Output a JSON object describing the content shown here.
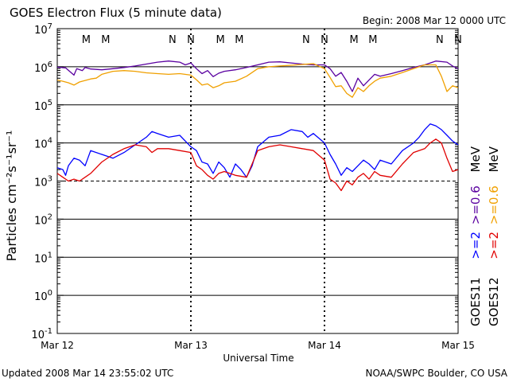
{
  "chart_data": {
    "type": "line",
    "title": "GOES Electron Flux (5 minute data)",
    "begin_label": "Begin: 2008 Mar 12 0000 UTC",
    "xlabel": "Universal Time",
    "ylabel": "Particles cm⁻²s⁻¹sr⁻¹",
    "footer_left": "Updated 2008 Mar 14 23:55:02 UTC",
    "footer_right": "NOAA/SWPC Boulder, CO USA",
    "y_scale": "log",
    "ylim_exponent": [
      -1,
      7
    ],
    "y_ticks": [
      {
        "base": "10",
        "exp": "7"
      },
      {
        "base": "10",
        "exp": "6"
      },
      {
        "base": "10",
        "exp": "5"
      },
      {
        "base": "10",
        "exp": "4"
      },
      {
        "base": "10",
        "exp": "3"
      },
      {
        "base": "10",
        "exp": "2"
      },
      {
        "base": "10",
        "exp": "1"
      },
      {
        "base": "10",
        "exp": "0"
      },
      {
        "base": "10",
        "exp": "-1"
      }
    ],
    "x_range_hours": [
      0,
      72
    ],
    "x_ticks": [
      "Mar 12",
      "Mar 13",
      "Mar 14",
      "Mar 15"
    ],
    "day_boundaries_hours": [
      24,
      48
    ],
    "threshold_exponent": 3,
    "mn_markers": [
      {
        "label": "M",
        "hour": 5.2,
        "color": "#0000ff"
      },
      {
        "label": "M",
        "hour": 8.7,
        "color": "#e00000"
      },
      {
        "label": "N",
        "hour": 20.7,
        "color": "#0000ff"
      },
      {
        "label": "N",
        "hour": 24.0,
        "color": "#e00000"
      },
      {
        "label": "M",
        "hour": 29.3,
        "color": "#0000ff"
      },
      {
        "label": "M",
        "hour": 32.7,
        "color": "#e00000"
      },
      {
        "label": "N",
        "hour": 44.7,
        "color": "#0000ff"
      },
      {
        "label": "N",
        "hour": 48.0,
        "color": "#e00000"
      },
      {
        "label": "M",
        "hour": 53.3,
        "color": "#0000ff"
      },
      {
        "label": "M",
        "hour": 56.7,
        "color": "#e00000"
      },
      {
        "label": "N",
        "hour": 68.7,
        "color": "#0000ff"
      },
      {
        "label": "N",
        "hour": 72.0,
        "color": "#e00000"
      }
    ],
    "legend": {
      "placement": "right",
      "goes11": "GOES11",
      "goes12": "GOES12",
      "g11_gt2": ">=2",
      "g11_gt06": ">=0.6",
      "g12_gt2": ">=2",
      "g12_gt06": ">=0.6",
      "unit": "MeV"
    },
    "series": [
      {
        "color": "#5a00a0",
        "x": [
          0,
          1.5,
          3,
          3.5,
          4.5,
          5,
          6,
          8,
          10,
          12,
          14,
          16,
          18,
          20,
          22,
          23,
          24,
          25,
          26,
          27,
          28,
          29,
          30,
          32,
          34,
          36,
          38,
          40,
          42,
          44,
          46,
          48,
          49,
          50,
          51,
          52,
          53,
          54,
          55,
          56,
          57,
          58,
          60,
          62,
          64,
          66,
          68,
          70,
          71,
          72
        ],
        "y": [
          5.99,
          5.97,
          5.78,
          5.95,
          5.9,
          5.98,
          5.94,
          5.92,
          5.95,
          5.98,
          6.02,
          6.07,
          6.12,
          6.15,
          6.12,
          6.05,
          6.1,
          5.95,
          5.82,
          5.9,
          5.74,
          5.83,
          5.88,
          5.92,
          5.98,
          6.05,
          6.12,
          6.13,
          6.1,
          6.07,
          6.05,
          6.05,
          5.95,
          5.75,
          5.85,
          5.62,
          5.35,
          5.7,
          5.5,
          5.65,
          5.8,
          5.75,
          5.82,
          5.9,
          5.98,
          6.05,
          6.15,
          6.12,
          6.02,
          5.95
        ]
      },
      {
        "color": "#f0a000",
        "x": [
          0,
          1,
          2,
          3,
          4,
          5,
          6,
          7,
          8,
          10,
          12,
          14,
          16,
          18,
          20,
          22,
          24,
          25,
          26,
          27,
          28,
          29,
          30,
          32,
          34,
          36,
          38,
          40,
          42,
          44,
          46,
          48,
          49,
          50,
          51,
          52,
          53,
          54,
          55,
          56,
          57,
          58,
          60,
          62,
          64,
          66,
          68,
          69,
          70,
          71,
          72
        ],
        "y": [
          5.65,
          5.62,
          5.58,
          5.52,
          5.6,
          5.64,
          5.68,
          5.7,
          5.8,
          5.88,
          5.9,
          5.88,
          5.84,
          5.82,
          5.8,
          5.82,
          5.78,
          5.66,
          5.52,
          5.55,
          5.45,
          5.5,
          5.58,
          5.62,
          5.75,
          5.95,
          6.0,
          6.02,
          6.04,
          6.06,
          6.08,
          5.95,
          5.72,
          5.48,
          5.5,
          5.3,
          5.2,
          5.45,
          5.35,
          5.5,
          5.62,
          5.7,
          5.75,
          5.85,
          5.95,
          6.05,
          6.05,
          5.75,
          5.35,
          5.5,
          5.45
        ]
      },
      {
        "color": "#0000ff",
        "x": [
          0,
          1,
          1.5,
          2,
          3,
          4,
          5,
          6,
          8,
          10,
          12,
          14,
          16,
          17,
          18,
          20,
          22,
          24,
          25,
          26,
          27,
          28,
          29,
          30,
          31,
          32,
          33,
          34,
          35,
          36,
          38,
          40,
          42,
          44,
          45,
          46,
          48,
          49,
          50,
          51,
          52,
          53,
          54,
          55,
          56,
          57,
          58,
          60,
          62,
          64,
          65,
          66,
          67,
          68,
          69,
          70,
          71,
          72
        ],
        "y": [
          3.35,
          3.3,
          3.15,
          3.4,
          3.6,
          3.55,
          3.4,
          3.8,
          3.7,
          3.6,
          3.75,
          3.95,
          4.15,
          4.3,
          4.25,
          4.15,
          4.2,
          3.9,
          3.8,
          3.5,
          3.45,
          3.2,
          3.5,
          3.35,
          3.1,
          3.45,
          3.3,
          3.1,
          3.4,
          3.9,
          4.15,
          4.2,
          4.35,
          4.3,
          4.15,
          4.25,
          4.0,
          3.7,
          3.45,
          3.15,
          3.35,
          3.25,
          3.4,
          3.55,
          3.45,
          3.3,
          3.55,
          3.45,
          3.8,
          4.0,
          4.15,
          4.35,
          4.5,
          4.45,
          4.35,
          4.2,
          4.05,
          3.95
        ]
      },
      {
        "color": "#e00000",
        "x": [
          0,
          1,
          2,
          3,
          4,
          5,
          6,
          8,
          10,
          12,
          14,
          16,
          17,
          18,
          20,
          22,
          24,
          25,
          26,
          27,
          28,
          29,
          30,
          32,
          34,
          36,
          38,
          40,
          42,
          44,
          46,
          48,
          49,
          50,
          51,
          52,
          53,
          54,
          55,
          56,
          57,
          58,
          60,
          62,
          64,
          66,
          67,
          68,
          69,
          70,
          71,
          72
        ],
        "y": [
          3.2,
          3.1,
          3.0,
          3.05,
          3.0,
          3.1,
          3.2,
          3.5,
          3.7,
          3.85,
          3.95,
          3.9,
          3.75,
          3.85,
          3.85,
          3.8,
          3.75,
          3.4,
          3.3,
          3.15,
          3.05,
          3.2,
          3.25,
          3.15,
          3.1,
          3.8,
          3.9,
          3.95,
          3.9,
          3.85,
          3.8,
          3.55,
          3.05,
          2.95,
          2.75,
          3.0,
          2.9,
          3.1,
          3.2,
          3.05,
          3.25,
          3.15,
          3.1,
          3.45,
          3.75,
          3.85,
          4.0,
          4.1,
          4.0,
          3.6,
          3.25,
          3.3
        ]
      }
    ]
  }
}
